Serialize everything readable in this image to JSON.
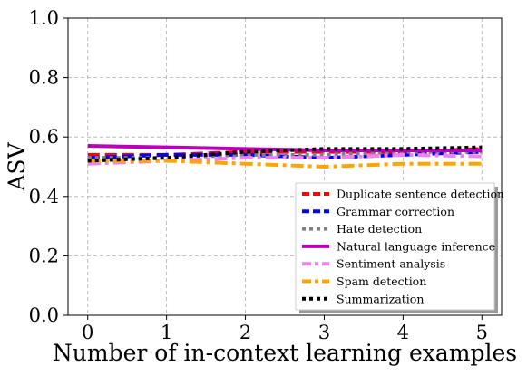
{
  "chart_data": {
    "type": "line",
    "title": "",
    "xlabel": "Number of in-context learning examples",
    "ylabel": "ASV",
    "xlim": [
      -0.25,
      5.25
    ],
    "ylim": [
      0.0,
      1.0
    ],
    "xticks": [
      0,
      1,
      2,
      3,
      4,
      5
    ],
    "xtick_labels": [
      "0",
      "1",
      "2",
      "3",
      "4",
      "5"
    ],
    "yticks": [
      0.0,
      0.2,
      0.4,
      0.6,
      0.8,
      1.0
    ],
    "ytick_labels": [
      "0.0",
      "0.2",
      "0.4",
      "0.6",
      "0.8",
      "1.0"
    ],
    "grid": true,
    "legend_position": "lower-right",
    "x": [
      0,
      1,
      2,
      3,
      4,
      5
    ],
    "series": [
      {
        "name": "Duplicate sentence detection",
        "values": [
          0.54,
          0.54,
          0.55,
          0.55,
          0.55,
          0.56
        ],
        "color": "#ff0000",
        "dash": "dashed"
      },
      {
        "name": "Grammar correction",
        "values": [
          0.53,
          0.54,
          0.54,
          0.53,
          0.54,
          0.55
        ],
        "color": "#0000ff",
        "dash": "dashed"
      },
      {
        "name": "Hate detection",
        "values": [
          0.53,
          0.53,
          0.54,
          0.54,
          0.55,
          0.55
        ],
        "color": "#808080",
        "dash": "dotted"
      },
      {
        "name": "Natural language inference",
        "values": [
          0.57,
          0.565,
          0.56,
          0.555,
          0.555,
          0.555
        ],
        "color": "#bb00bb",
        "dash": "solid"
      },
      {
        "name": "Sentiment analysis",
        "values": [
          0.51,
          0.52,
          0.53,
          0.53,
          0.54,
          0.535
        ],
        "color": "#ee82ee",
        "dash": "dashdot"
      },
      {
        "name": "Spam detection",
        "values": [
          0.52,
          0.52,
          0.51,
          0.5,
          0.51,
          0.51
        ],
        "color": "#ffa500",
        "dash": "dashdot"
      },
      {
        "name": "Summarization",
        "values": [
          0.52,
          0.53,
          0.55,
          0.56,
          0.56,
          0.565
        ],
        "color": "#000000",
        "dash": "dotted"
      }
    ]
  }
}
